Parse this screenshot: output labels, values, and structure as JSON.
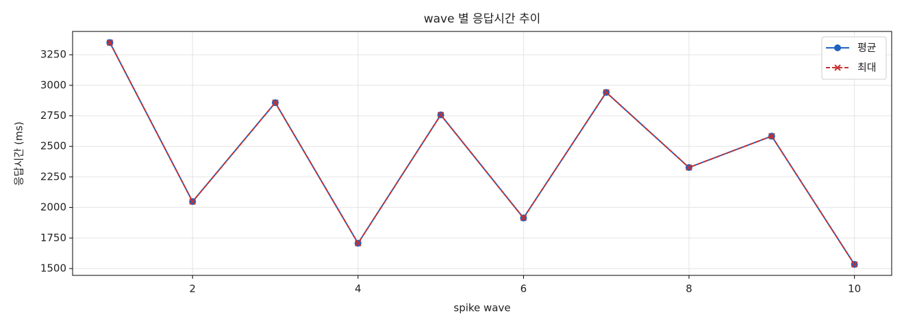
{
  "chart_data": {
    "type": "line",
    "title": "wave 별 응답시간 추이",
    "xlabel": "spike wave",
    "ylabel": "응답시간 (ms)",
    "x": [
      1,
      2,
      3,
      4,
      5,
      6,
      7,
      8,
      9,
      10
    ],
    "series": [
      {
        "name": "평균",
        "color": "#1f62c0",
        "marker": "circle",
        "dash": false,
        "values": [
          3350,
          2048,
          2858,
          1707,
          2758,
          1914,
          2942,
          2327,
          2584,
          1534
        ]
      },
      {
        "name": "최대",
        "color": "#c9302c",
        "marker": "x",
        "dash": true,
        "values": [
          3350,
          2048,
          2858,
          1707,
          2758,
          1914,
          2942,
          2327,
          2584,
          1534
        ]
      }
    ],
    "xlim": [
      0.55,
      10.45
    ],
    "ylim": [
      1444,
      3441
    ],
    "xticks": [
      2,
      4,
      6,
      8,
      10
    ],
    "yticks": [
      1500,
      1750,
      2000,
      2250,
      2500,
      2750,
      3000,
      3250
    ],
    "grid": true,
    "legend": "upper right"
  }
}
